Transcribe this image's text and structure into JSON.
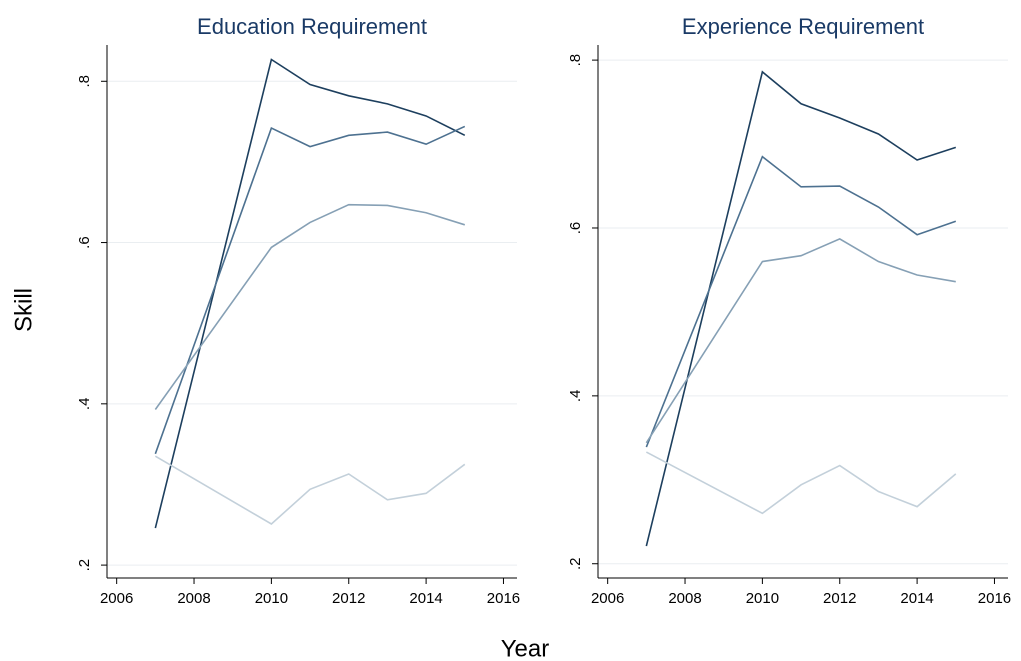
{
  "y_label": "Skill",
  "x_label": "Year",
  "chart_data": [
    {
      "type": "line",
      "title": "Education Requirement",
      "x": [
        2007,
        2010,
        2011,
        2012,
        2013,
        2014,
        2015
      ],
      "series": [
        {
          "color": "#1d3f5e",
          "values": [
            0.246,
            0.827,
            0.796,
            0.782,
            0.772,
            0.757,
            0.733
          ]
        },
        {
          "color": "#4d7190",
          "values": [
            0.338,
            0.742,
            0.719,
            0.733,
            0.737,
            0.722,
            0.744
          ]
        },
        {
          "color": "#86a0b5",
          "values": [
            0.393,
            0.594,
            0.625,
            0.647,
            0.646,
            0.637,
            0.622
          ]
        },
        {
          "color": "#c3d0da",
          "values": [
            0.335,
            0.251,
            0.294,
            0.313,
            0.281,
            0.289,
            0.325
          ]
        }
      ],
      "xlim": [
        2005.75,
        2016.35
      ],
      "xticks": [
        2006,
        2008,
        2010,
        2012,
        2014,
        2016
      ],
      "ylim": [
        0.184,
        0.845
      ],
      "yticks": [
        {
          "value": 0.2,
          "label": ".2"
        },
        {
          "value": 0.4,
          "label": ".4"
        },
        {
          "value": 0.6,
          "label": ".6"
        },
        {
          "value": 0.8,
          "label": ".8"
        }
      ],
      "grid": true
    },
    {
      "type": "line",
      "title": "Experience Requirement",
      "x": [
        2007,
        2010,
        2011,
        2012,
        2013,
        2014,
        2015
      ],
      "series": [
        {
          "color": "#1d3f5e",
          "values": [
            0.221,
            0.786,
            0.748,
            0.731,
            0.712,
            0.681,
            0.696
          ]
        },
        {
          "color": "#4d7190",
          "values": [
            0.339,
            0.685,
            0.649,
            0.65,
            0.625,
            0.592,
            0.608
          ]
        },
        {
          "color": "#86a0b5",
          "values": [
            0.344,
            0.56,
            0.567,
            0.587,
            0.56,
            0.544,
            0.536
          ]
        },
        {
          "color": "#c3d0da",
          "values": [
            0.333,
            0.26,
            0.294,
            0.317,
            0.286,
            0.268,
            0.307
          ]
        }
      ],
      "xlim": [
        2005.75,
        2016.35
      ],
      "xticks": [
        2006,
        2008,
        2010,
        2012,
        2014,
        2016
      ],
      "ylim": [
        0.183,
        0.818
      ],
      "yticks": [
        {
          "value": 0.2,
          "label": ".2"
        },
        {
          "value": 0.4,
          "label": ".4"
        },
        {
          "value": 0.6,
          "label": ".6"
        },
        {
          "value": 0.8,
          "label": ".8"
        }
      ],
      "grid": true
    }
  ]
}
